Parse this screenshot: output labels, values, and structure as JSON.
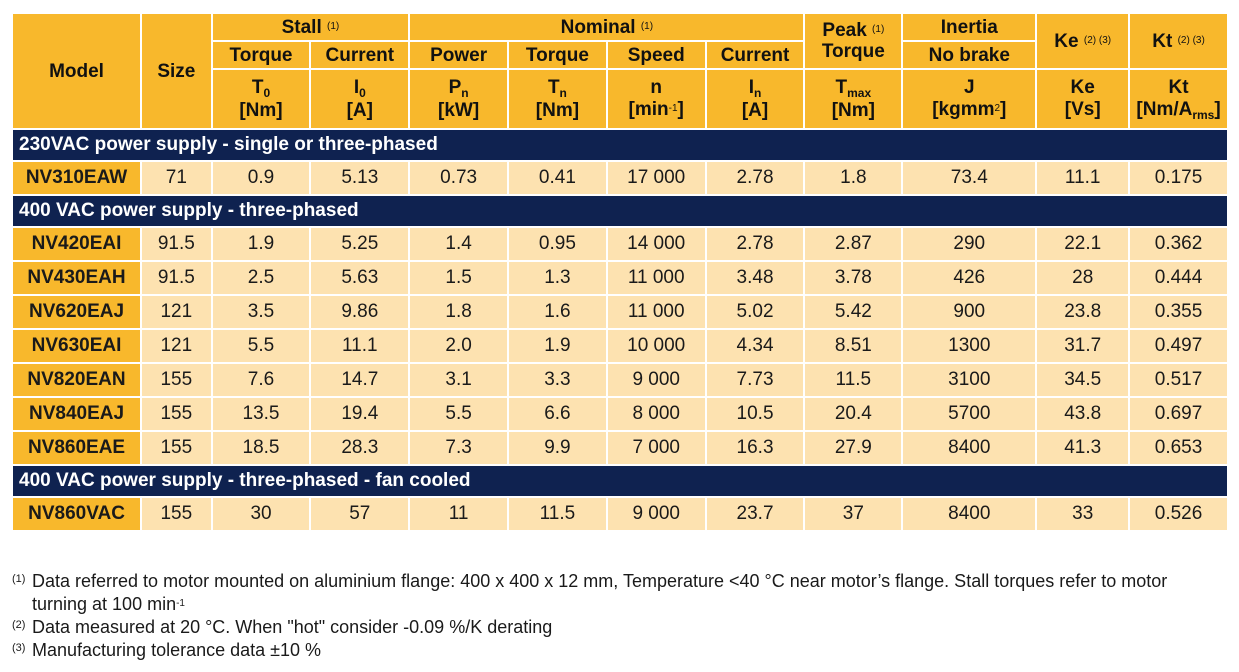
{
  "header": {
    "model": "Model",
    "size": "Size",
    "stall": "Stall",
    "stall_sup": "(1)",
    "nominal": "Nominal",
    "nominal_sup": "(1)",
    "peak": "Peak",
    "peak_sup": "(1)",
    "peak_torque": "Torque",
    "inertia": "Inertia",
    "no_brake": "No brake",
    "ke": "Ke",
    "ke_sup": "(2) (3)",
    "kt": "Kt",
    "kt_sup": "(2) (3)",
    "stall_torque": "Torque",
    "stall_current": "Current",
    "nom_power": "Power",
    "nom_torque": "Torque",
    "nom_speed": "Speed",
    "nom_current": "Current",
    "sym_T0_main": "T",
    "sym_T0_sub": "0",
    "unit_Nm_a": "[Nm]",
    "sym_I0_main": "I",
    "sym_I0_sub": "0",
    "unit_A_a": "[A]",
    "sym_Pn_main": "P",
    "sym_Pn_sub": "n",
    "unit_kW": "[kW]",
    "sym_Tn_main": "T",
    "sym_Tn_sub": "n",
    "unit_Nm_b": "[Nm]",
    "sym_n": "n",
    "unit_min_pre": "[min",
    "unit_min_sup": "-1",
    "unit_min_post": "]",
    "sym_In_main": "I",
    "sym_In_sub": "n",
    "unit_A_b": "[A]",
    "sym_Tmax_main": "T",
    "sym_Tmax_sub": "max",
    "unit_Nm_c": "[Nm]",
    "sym_J": "J",
    "unit_kgmm_pre": "[kgmm",
    "unit_kgmm_sup": "2",
    "unit_kgmm_post": "]",
    "sym_Ke": "Ke",
    "unit_Vs": "[Vs]",
    "sym_Kt": "Kt",
    "unit_kt_pre": "[Nm/A",
    "unit_kt_sub": "rms",
    "unit_kt_post": "]"
  },
  "sections": [
    {
      "title": "230VAC power supply - single or three-phased",
      "rows": [
        [
          "NV310EAW",
          "71",
          "0.9",
          "5.13",
          "0.73",
          "0.41",
          "17 000",
          "2.78",
          "1.8",
          "73.4",
          "11.1",
          "0.175"
        ]
      ]
    },
    {
      "title": "400 VAC power supply - three-phased",
      "rows": [
        [
          "NV420EAI",
          "91.5",
          "1.9",
          "5.25",
          "1.4",
          "0.95",
          "14 000",
          "2.78",
          "2.87",
          "290",
          "22.1",
          "0.362"
        ],
        [
          "NV430EAH",
          "91.5",
          "2.5",
          "5.63",
          "1.5",
          "1.3",
          "11 000",
          "3.48",
          "3.78",
          "426",
          "28",
          "0.444"
        ],
        [
          "NV620EAJ",
          "121",
          "3.5",
          "9.86",
          "1.8",
          "1.6",
          "11 000",
          "5.02",
          "5.42",
          "900",
          "23.8",
          "0.355"
        ],
        [
          "NV630EAI",
          "121",
          "5.5",
          "11.1",
          "2.0",
          "1.9",
          "10 000",
          "4.34",
          "8.51",
          "1300",
          "31.7",
          "0.497"
        ],
        [
          "NV820EAN",
          "155",
          "7.6",
          "14.7",
          "3.1",
          "3.3",
          "9 000",
          "7.73",
          "11.5",
          "3100",
          "34.5",
          "0.517"
        ],
        [
          "NV840EAJ",
          "155",
          "13.5",
          "19.4",
          "5.5",
          "6.6",
          "8 000",
          "10.5",
          "20.4",
          "5700",
          "43.8",
          "0.697"
        ],
        [
          "NV860EAE",
          "155",
          "18.5",
          "28.3",
          "7.3",
          "9.9",
          "7 000",
          "16.3",
          "27.9",
          "8400",
          "41.3",
          "0.653"
        ]
      ]
    },
    {
      "title": "400 VAC power supply - three-phased - fan cooled",
      "rows": [
        [
          "NV860VAC",
          "155",
          "30",
          "57",
          "11",
          "11.5",
          "9 000",
          "23.7",
          "37",
          "8400",
          "33",
          "0.526"
        ]
      ]
    }
  ],
  "notes": [
    {
      "num": "(1)",
      "text_pre": "Data referred to motor mounted on aluminium flange: 400 x 400 x 12 mm, Temperature <40 °C near motor’s flange. Stall torques refer to motor turning at 100 min",
      "text_sup": "-1"
    },
    {
      "num": "(2)",
      "text_pre": "Data measured at 20 °C. When \"hot\" consider -0.09 %/K derating",
      "text_sup": ""
    },
    {
      "num": "(3)",
      "text_pre": "Manufacturing tolerance data ±10 %",
      "text_sup": ""
    }
  ]
}
